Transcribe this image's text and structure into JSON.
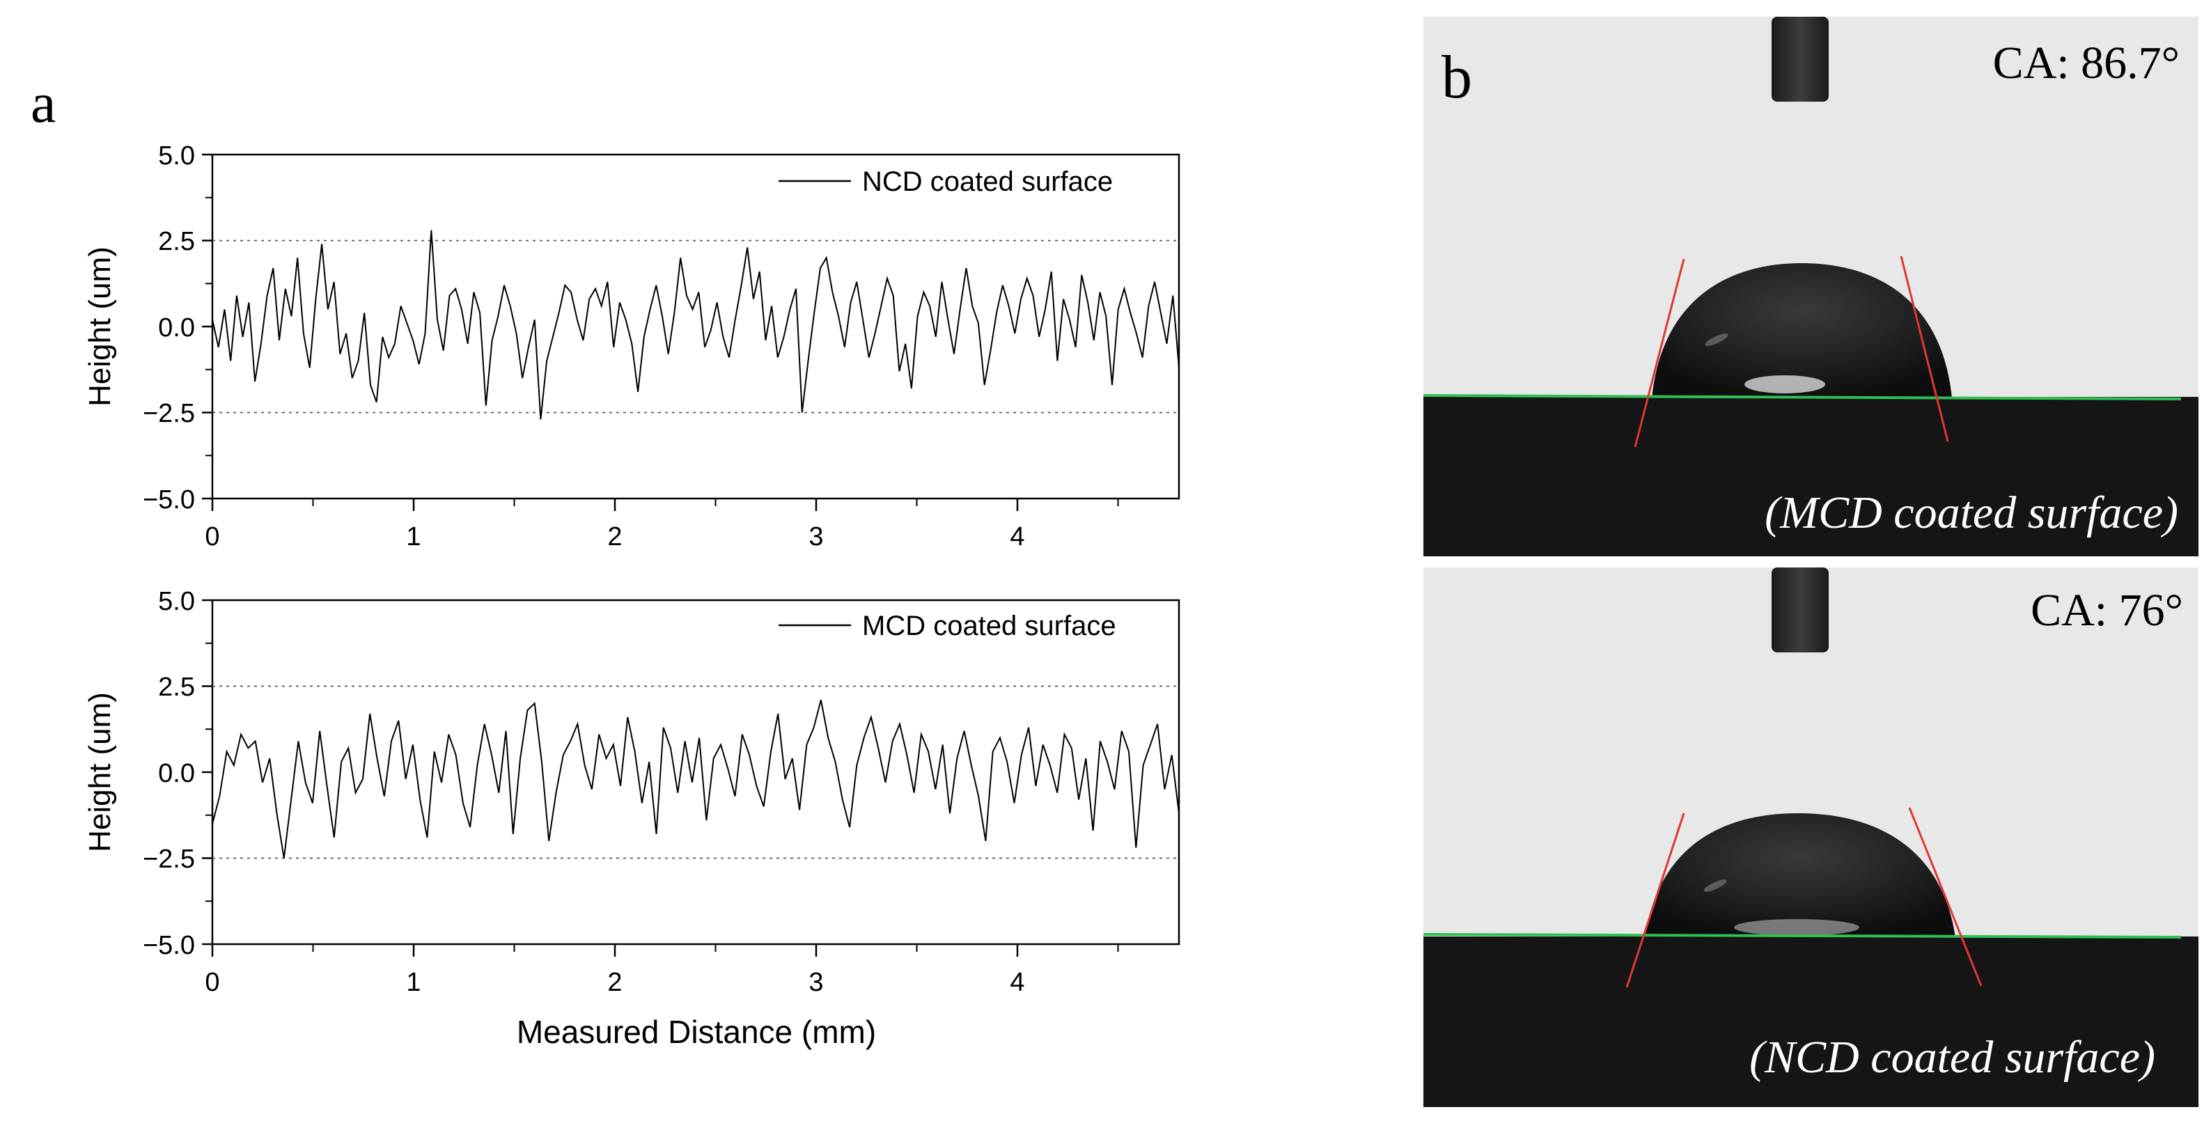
{
  "panels": {
    "a_label": "a",
    "b_label": "b",
    "photo_top": {
      "angle_label": "CA: 86.7°",
      "caption": "(MCD coated surface)"
    },
    "photo_bottom": {
      "angle_label": "CA: 76°",
      "caption": "(NCD coated surface)"
    }
  },
  "chart_data": [
    {
      "type": "line",
      "title": "",
      "xlabel": "",
      "ylabel": "Height (um)",
      "xlim": [
        0,
        4.8
      ],
      "ylim": [
        -5.0,
        5.0
      ],
      "xticks": [
        "0",
        "1",
        "2",
        "3",
        "4"
      ],
      "yticks": [
        "5.0",
        "2.5",
        "0.0",
        "−2.5",
        "−5.0"
      ],
      "ref_lines": [
        2.5,
        -2.5
      ],
      "legend_placement": "top-right",
      "series": [
        {
          "name": "NCD coated surface",
          "color": "#000000",
          "x_range": [
            0,
            4.8
          ],
          "y": [
            0.2,
            -0.6,
            0.5,
            -1.0,
            0.9,
            -0.3,
            0.7,
            -1.6,
            -0.5,
            0.9,
            1.7,
            -0.4,
            1.1,
            0.3,
            2.0,
            -0.2,
            -1.2,
            0.8,
            2.4,
            0.5,
            1.3,
            -0.8,
            -0.2,
            -1.5,
            -1.0,
            0.4,
            -1.7,
            -2.2,
            -0.3,
            -0.9,
            -0.5,
            0.6,
            0.1,
            -0.4,
            -1.1,
            -0.2,
            2.8,
            0.2,
            -0.7,
            0.9,
            1.1,
            0.5,
            -0.5,
            1.0,
            0.4,
            -2.3,
            -0.4,
            0.3,
            1.2,
            0.6,
            -0.2,
            -1.5,
            -0.6,
            0.2,
            -2.7,
            -1.0,
            -0.3,
            0.4,
            1.2,
            1.0,
            0.2,
            -0.4,
            0.8,
            1.1,
            0.6,
            1.3,
            -0.6,
            0.7,
            0.2,
            -0.5,
            -1.9,
            -0.3,
            0.5,
            1.2,
            0.3,
            -0.8,
            0.4,
            2.0,
            0.9,
            0.5,
            1.0,
            -0.6,
            -0.1,
            0.7,
            -0.3,
            -0.9,
            0.2,
            1.2,
            2.3,
            0.8,
            1.6,
            -0.4,
            0.6,
            -0.9,
            -0.3,
            0.5,
            1.1,
            -2.5,
            -1.0,
            0.4,
            1.7,
            2.0,
            1.0,
            0.3,
            -0.6,
            0.7,
            1.3,
            0.2,
            -0.9,
            -0.2,
            0.6,
            1.4,
            0.9,
            -1.3,
            -0.5,
            -1.8,
            0.3,
            1.0,
            0.6,
            -0.3,
            1.3,
            0.2,
            -0.8,
            0.5,
            1.7,
            0.6,
            0.1,
            -1.7,
            -0.7,
            0.4,
            1.2,
            0.6,
            -0.2,
            0.8,
            1.4,
            0.9,
            -0.3,
            0.5,
            1.6,
            -1.0,
            0.8,
            0.2,
            -0.6,
            1.5,
            0.7,
            -0.4,
            1.0,
            0.3,
            -1.7,
            0.5,
            1.1,
            0.4,
            -0.2,
            -0.9,
            0.6,
            1.3,
            0.4,
            -0.5,
            0.9,
            -1.2
          ]
        },
        {
          "name": "MCD coated surface",
          "color": "#000000",
          "x_range": [
            0,
            4.8
          ],
          "y": [
            -1.5,
            -0.7,
            0.6,
            0.2,
            1.1,
            0.7,
            0.9,
            -0.3,
            0.4,
            -1.2,
            -2.5,
            -0.8,
            0.9,
            -0.3,
            -0.9,
            1.2,
            -0.4,
            -1.9,
            0.3,
            0.7,
            -0.6,
            -0.2,
            1.7,
            0.4,
            -0.7,
            0.9,
            1.5,
            -0.2,
            0.8,
            -0.8,
            -1.9,
            0.6,
            -0.3,
            1.1,
            0.5,
            -0.9,
            -1.6,
            0.2,
            1.4,
            0.5,
            -0.6,
            1.2,
            -1.8,
            0.4,
            1.8,
            2.0,
            0.3,
            -2.0,
            -0.6,
            0.5,
            0.9,
            1.4,
            0.2,
            -0.5,
            1.1,
            0.4,
            0.8,
            -0.4,
            1.6,
            0.6,
            -0.9,
            0.3,
            -1.8,
            1.3,
            0.7,
            -0.6,
            0.9,
            -0.3,
            1.0,
            -1.4,
            0.4,
            0.8,
            0.1,
            -0.7,
            1.1,
            0.5,
            -0.4,
            -1.0,
            0.6,
            1.7,
            -0.2,
            0.4,
            -1.1,
            0.8,
            1.3,
            2.1,
            1.0,
            0.3,
            -0.8,
            -1.6,
            0.2,
            1.0,
            1.6,
            0.7,
            -0.3,
            0.9,
            1.4,
            0.5,
            -0.6,
            1.1,
            0.6,
            -0.5,
            0.8,
            -1.2,
            0.4,
            1.2,
            0.2,
            -0.7,
            -2.0,
            0.6,
            1.0,
            0.3,
            -0.9,
            0.5,
            1.3,
            -0.4,
            0.8,
            0.2,
            -0.6,
            1.1,
            0.7,
            -0.8,
            0.4,
            -1.7,
            0.9,
            0.3,
            -0.5,
            1.2,
            0.6,
            -2.2,
            0.2,
            0.8,
            1.4,
            -0.5,
            0.5,
            -1.2
          ]
        }
      ]
    }
  ]
}
